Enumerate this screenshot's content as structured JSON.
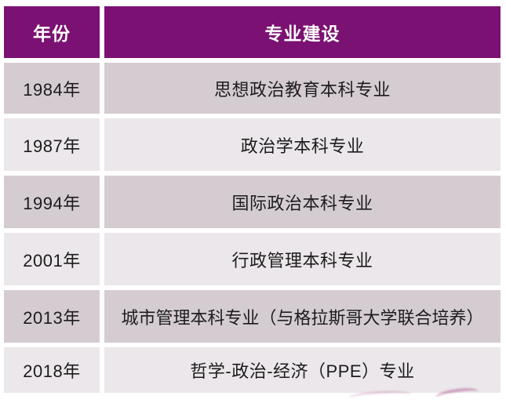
{
  "chart_data": {
    "type": "table",
    "columns": [
      "年份",
      "专业建设"
    ],
    "rows": [
      [
        "1984年",
        "思想政治教育本科专业"
      ],
      [
        "1987年",
        "政治学本科专业"
      ],
      [
        "1994年",
        "国际政治本科专业"
      ],
      [
        "2001年",
        "行政管理本科专业"
      ],
      [
        "2013年",
        "城市管理本科专业（与格拉斯哥大学联合培养）"
      ],
      [
        "2018年",
        "哲学-政治-经济（PPE）专业"
      ]
    ],
    "layout_hints": {
      "header_style": "solid purple band, white bold text",
      "row_striping": "alternating mauve / light pink-gray",
      "gutters": "white 6px between all cells"
    }
  },
  "table": {
    "header": {
      "year": "年份",
      "major": "专业建设"
    },
    "rows": [
      {
        "year": "1984年",
        "major": "思想政治教育本科专业"
      },
      {
        "year": "1987年",
        "major": "政治学本科专业"
      },
      {
        "year": "1994年",
        "major": "国际政治本科专业"
      },
      {
        "year": "2001年",
        "major": "行政管理本科专业"
      },
      {
        "year": "2013年",
        "major": "城市管理本科专业（与格拉斯哥大学联合培养）"
      },
      {
        "year": "2018年",
        "major": "哲学-政治-经济（PPE）专业"
      }
    ]
  },
  "colors": {
    "header_bg": "#7b1172",
    "header_text": "#ffffff",
    "row_odd_bg": "#d5ccd2",
    "row_even_bg": "#ece7ea",
    "body_text": "#1c1c1c",
    "gap": "#ffffff"
  }
}
